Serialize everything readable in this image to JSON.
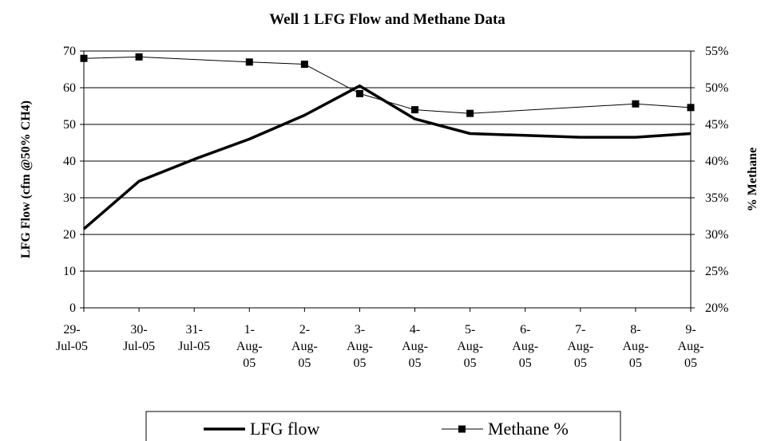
{
  "chart_data": {
    "type": "line",
    "title": "Well 1 LFG Flow and Methane Data",
    "categories": [
      "29-Jul-05",
      "30-Jul-05",
      "31-Jul-05",
      "1-Aug-05",
      "2-Aug-05",
      "3-Aug-05",
      "4-Aug-05",
      "5-Aug-05",
      "6-Aug-05",
      "7-Aug-05",
      "8-Aug-05",
      "9-Aug-05"
    ],
    "y_label": "LFG Flow (cfm @50% CH4)",
    "y2_label": "% Methane",
    "ylim": [
      0,
      70
    ],
    "yticks": [
      0,
      10,
      20,
      30,
      40,
      50,
      60,
      70
    ],
    "y2lim": [
      20,
      55
    ],
    "y2ticks": [
      {
        "value": 20,
        "label": "20%"
      },
      {
        "value": 25,
        "label": "25%"
      },
      {
        "value": 30,
        "label": "30%"
      },
      {
        "value": 35,
        "label": "35%"
      },
      {
        "value": 40,
        "label": "40%"
      },
      {
        "value": 45,
        "label": "45%"
      },
      {
        "value": 50,
        "label": "50%"
      },
      {
        "value": 55,
        "label": "55%"
      }
    ],
    "grid": true,
    "legend": "bottom",
    "span_gaps": true,
    "series": [
      {
        "name": "LFG flow",
        "color": "#000000",
        "values": [
          21.5,
          34.5,
          40.5,
          46,
          52.5,
          60.5,
          51.5,
          47.5,
          47,
          46.5,
          46.5,
          47.5
        ]
      },
      {
        "name": "Methane %",
        "color": "#000000",
        "axis": "y2",
        "marker": "square",
        "values": [
          54,
          54.2,
          null,
          53.5,
          53.2,
          49.2,
          47,
          46.5,
          null,
          null,
          47.8,
          47.3
        ]
      }
    ]
  }
}
